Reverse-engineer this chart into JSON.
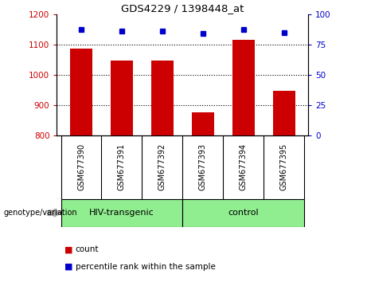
{
  "title": "GDS4229 / 1398448_at",
  "categories": [
    "GSM677390",
    "GSM677391",
    "GSM677392",
    "GSM677393",
    "GSM677394",
    "GSM677395"
  ],
  "bar_values": [
    1085,
    1048,
    1048,
    875,
    1115,
    948
  ],
  "percentile_values": [
    87,
    86,
    86,
    84,
    87,
    85
  ],
  "bar_color": "#cc0000",
  "percentile_color": "#0000cc",
  "ylim_left": [
    800,
    1200
  ],
  "ylim_right": [
    0,
    100
  ],
  "yticks_left": [
    800,
    900,
    1000,
    1100,
    1200
  ],
  "yticks_right": [
    0,
    25,
    50,
    75,
    100
  ],
  "grid_values": [
    900,
    1000,
    1100
  ],
  "group1_label": "HIV-transgenic",
  "group2_label": "control",
  "group1_indices": [
    0,
    1,
    2
  ],
  "group2_indices": [
    3,
    4,
    5
  ],
  "group_color": "#90ee90",
  "tick_color_left": "#cc0000",
  "tick_color_right": "#0000cc",
  "legend_count_label": "count",
  "legend_percentile_label": "percentile rank within the sample",
  "genotype_label": "genotype/variation",
  "bar_bottom": 800,
  "bar_width": 0.55,
  "background_color": "#ffffff",
  "plot_bg_color": "#ffffff",
  "tick_label_area_color": "#cccccc"
}
